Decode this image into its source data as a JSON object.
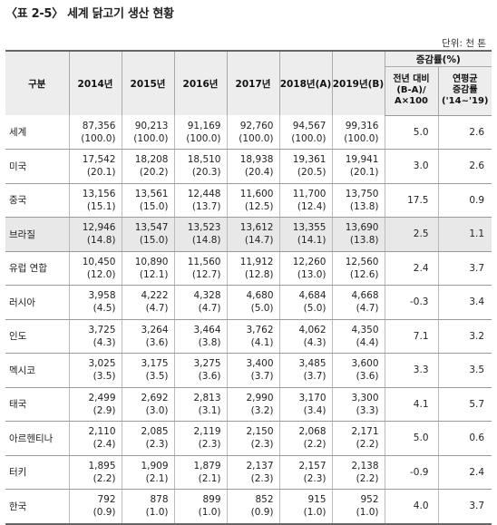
{
  "title": "〈표 2-5〉 세계 닭고기 생산 현황",
  "unit": "단위: 천 톤",
  "header": {
    "category": "구분",
    "years": [
      "2014년",
      "2015년",
      "2016년",
      "2017년",
      "2018년(A)",
      "2019년(B)"
    ],
    "growth_group": "증감률(%)",
    "growth_yoy": [
      "전년 대비",
      "(B-A)/",
      "A×100"
    ],
    "growth_avg": [
      "연평균",
      "증감률",
      "('14~'19)"
    ]
  },
  "rows": [
    {
      "name": "세계",
      "vals": [
        "87,356",
        "90,213",
        "91,169",
        "92,760",
        "94,567",
        "99,316"
      ],
      "pcts": [
        "(100.0)",
        "(100.0)",
        "(100.0)",
        "(100.0)",
        "(100.0)",
        "(100.0)"
      ],
      "yoy": "5.0",
      "avg": "2.6"
    },
    {
      "name": "미국",
      "vals": [
        "17,542",
        "18,208",
        "18,510",
        "18,938",
        "19,361",
        "19,941"
      ],
      "pcts": [
        "(20.1)",
        "(20.2)",
        "(20.3)",
        "(20.4)",
        "(20.5)",
        "(20.1)"
      ],
      "yoy": "3.0",
      "avg": "2.6"
    },
    {
      "name": "중국",
      "vals": [
        "13,156",
        "13,561",
        "12,448",
        "11,600",
        "11,700",
        "13,750"
      ],
      "pcts": [
        "(15.1)",
        "(15.0)",
        "(13.7)",
        "(12.5)",
        "(12.4)",
        "(13.8)"
      ],
      "yoy": "17.5",
      "avg": "0.9"
    },
    {
      "name": "브라질",
      "vals": [
        "12,946",
        "13,547",
        "13,523",
        "13,612",
        "13,355",
        "13,690"
      ],
      "pcts": [
        "(14.8)",
        "(15.0)",
        "(14.8)",
        "(14.7)",
        "(14.1)",
        "(13.8)"
      ],
      "yoy": "2.5",
      "avg": "1.1",
      "highlight": true
    },
    {
      "name": "유럽 연합",
      "vals": [
        "10,450",
        "10,890",
        "11,560",
        "11,912",
        "12,260",
        "12,560"
      ],
      "pcts": [
        "(12.0)",
        "(12.1)",
        "(12.7)",
        "(12.8)",
        "(13.0)",
        "(12.6)"
      ],
      "yoy": "2.4",
      "avg": "3.7"
    },
    {
      "name": "러시아",
      "vals": [
        "3,958",
        "4,222",
        "4,328",
        "4,680",
        "4,684",
        "4,668"
      ],
      "pcts": [
        "(4.5)",
        "(4.7)",
        "(4.7)",
        "(5.0)",
        "(5.0)",
        "(4.7)"
      ],
      "yoy": "-0.3",
      "avg": "3.4"
    },
    {
      "name": "인도",
      "vals": [
        "3,725",
        "3,264",
        "3,464",
        "3,762",
        "4,062",
        "4,350"
      ],
      "pcts": [
        "(4.3)",
        "(3.6)",
        "(3.8)",
        "(4.1)",
        "(4.3)",
        "(4.4)"
      ],
      "yoy": "7.1",
      "avg": "3.2"
    },
    {
      "name": "멕시코",
      "vals": [
        "3,025",
        "3,175",
        "3,275",
        "3,400",
        "3,485",
        "3,600"
      ],
      "pcts": [
        "(3.5)",
        "(3.5)",
        "(3.6)",
        "(3.7)",
        "(3.7)",
        "(3.6)"
      ],
      "yoy": "3.3",
      "avg": "3.5"
    },
    {
      "name": "태국",
      "vals": [
        "2,499",
        "2,692",
        "2,813",
        "2,990",
        "3,170",
        "3,300"
      ],
      "pcts": [
        "(2.9)",
        "(3.0)",
        "(3.1)",
        "(3.2)",
        "(3.4)",
        "(3.3)"
      ],
      "yoy": "4.1",
      "avg": "5.7"
    },
    {
      "name": "아르헨티나",
      "vals": [
        "2,110",
        "2,085",
        "2,119",
        "2,150",
        "2,068",
        "2,171"
      ],
      "pcts": [
        "(2.4)",
        "(2.3)",
        "(2.3)",
        "(2.3)",
        "(2.2)",
        "(2.2)"
      ],
      "yoy": "5.0",
      "avg": "0.6"
    },
    {
      "name": "터키",
      "vals": [
        "1,895",
        "1,909",
        "1,879",
        "2,137",
        "2,157",
        "2,138"
      ],
      "pcts": [
        "(2.2)",
        "(2.1)",
        "(2.1)",
        "(2.3)",
        "(2.3)",
        "(2.2)"
      ],
      "yoy": "-0.9",
      "avg": "2.4"
    },
    {
      "name": "한국",
      "vals": [
        "792",
        "878",
        "899",
        "852",
        "915",
        "952"
      ],
      "pcts": [
        "(0.9)",
        "(1.0)",
        "(1.0)",
        "(0.9)",
        "(1.0)",
        "(1.0)"
      ],
      "yoy": "4.0",
      "avg": "3.7"
    }
  ]
}
